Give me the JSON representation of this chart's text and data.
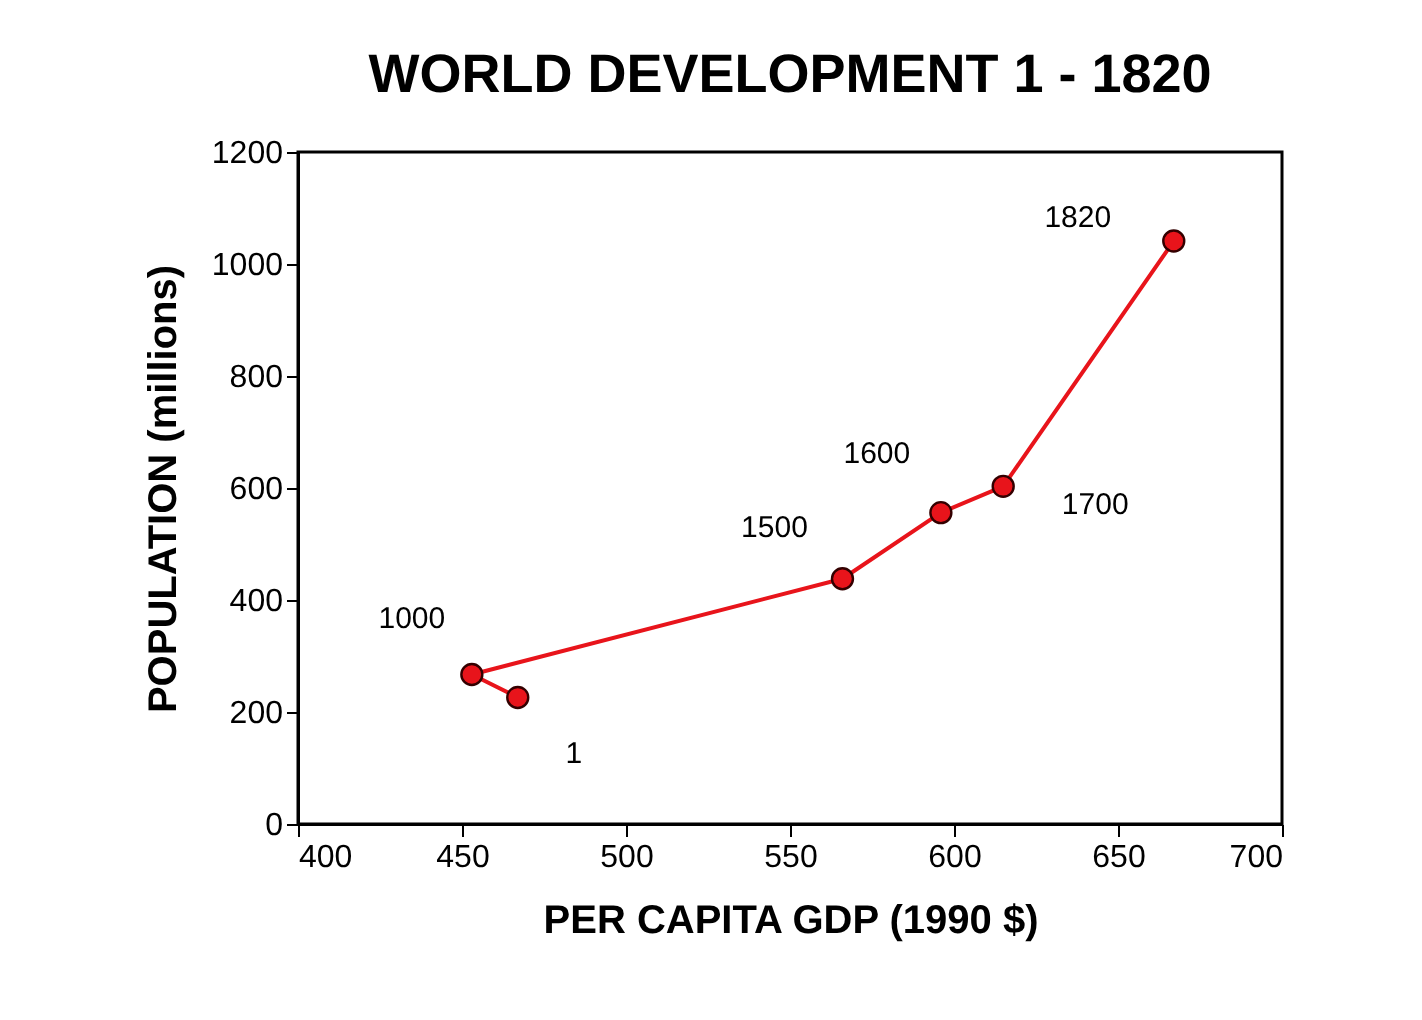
{
  "chart_data": {
    "type": "line",
    "title": "WORLD DEVELOPMENT 1 - 1820",
    "xlabel": "PER CAPITA GDP (1990 $)",
    "ylabel": "POPULATION (millions)",
    "x": [
      467,
      453,
      566,
      596,
      615,
      667
    ],
    "series": [
      {
        "color": "#e8141b",
        "values": [
          226,
          267,
          438,
          556,
          603,
          1041
        ]
      }
    ],
    "annotations": [
      {
        "text": "1",
        "x": 467,
        "y": 226
      },
      {
        "text": "1000",
        "x": 453,
        "y": 267
      },
      {
        "text": "1500",
        "x": 566,
        "y": 438
      },
      {
        "text": "1600",
        "x": 596,
        "y": 556
      },
      {
        "text": "1700",
        "x": 615,
        "y": 603
      },
      {
        "text": "1820",
        "x": 667,
        "y": 1041
      }
    ],
    "xlim": [
      400,
      700
    ],
    "xticks": [
      400,
      450,
      500,
      550,
      600,
      650,
      700
    ],
    "ylim": [
      0,
      1200
    ],
    "yticks": [
      0,
      200,
      400,
      600,
      800,
      1000,
      1200
    ],
    "grid": false,
    "marker": "circle",
    "line_style": "solid"
  }
}
